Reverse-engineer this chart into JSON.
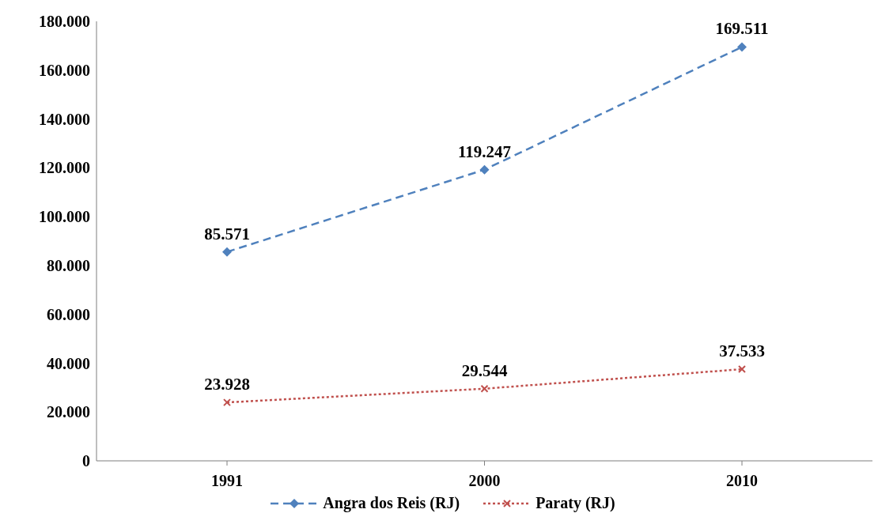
{
  "chart_data": {
    "type": "line",
    "categories": [
      "1991",
      "2000",
      "2010"
    ],
    "series": [
      {
        "name": "Angra dos Reis (RJ)",
        "color": "#4f81bd",
        "values": [
          85571,
          119247,
          169511
        ],
        "value_labels": [
          "85.571",
          "119.247",
          "169.511"
        ],
        "marker": "diamond",
        "line_style": "dashed"
      },
      {
        "name": "Paraty (RJ)",
        "color": "#c0504d",
        "values": [
          23928,
          29544,
          37533
        ],
        "value_labels": [
          "23.928",
          "29.544",
          "37.533"
        ],
        "marker": "cross",
        "line_style": "dotted"
      }
    ],
    "ylim": [
      0,
      180000
    ],
    "yticks": [
      {
        "value": 0,
        "label": "0"
      },
      {
        "value": 20000,
        "label": "20.000"
      },
      {
        "value": 40000,
        "label": "40.000"
      },
      {
        "value": 60000,
        "label": "60.000"
      },
      {
        "value": 80000,
        "label": "80.000"
      },
      {
        "value": 100000,
        "label": "100.000"
      },
      {
        "value": 120000,
        "label": "120.000"
      },
      {
        "value": 140000,
        "label": "140.000"
      },
      {
        "value": 160000,
        "label": "160.000"
      },
      {
        "value": 180000,
        "label": "180.000"
      }
    ],
    "grid": false,
    "legend": "bottom"
  }
}
